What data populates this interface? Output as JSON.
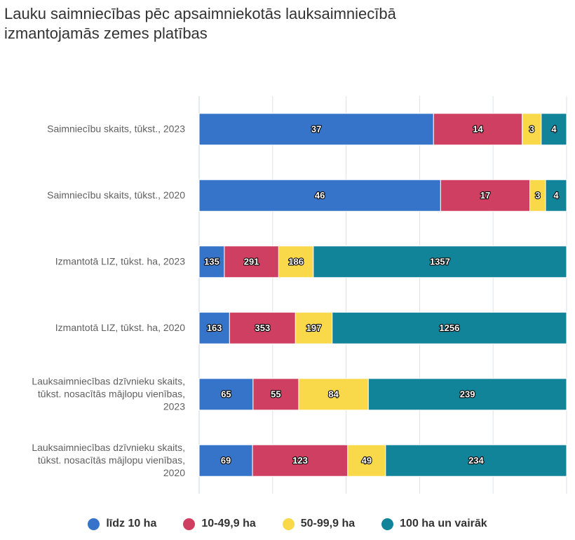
{
  "title_lines": [
    "Lauku saimniecības pēc apsaimniekotās lauksaimniecībā",
    "izmantojamās zemes platības"
  ],
  "colors": {
    "series": [
      "#3574c8",
      "#cf3f61",
      "#f9d84a",
      "#12849a"
    ],
    "grid": "#dbe3ea",
    "axis": "#ccd6e0",
    "label": "#606060"
  },
  "chart_data": {
    "type": "bar",
    "orientation": "horizontal",
    "stacking": "percent",
    "title": "Lauku saimniecības pēc apsaimniekotās lauksaimniecībā izmantojamās zemes platības",
    "categories": [
      [
        "Saimniecību skaits, tūkst., 2023"
      ],
      [
        "Saimniecību skaits, tūkst., 2020"
      ],
      [
        "Izmantotā LIZ, tūkst. ha, 2023"
      ],
      [
        "Izmantotā LIZ, tūkst. ha, 2020"
      ],
      [
        "Lauksaimniecības dzīvnieku skaits,",
        "tūkst. nosacītās mājlopu vienības,",
        "2023"
      ],
      [
        "Lauksaimniecības dzīvnieku skaits,",
        "tūkst. nosacītās mājlopu vienības,",
        "2020"
      ]
    ],
    "series": [
      {
        "name": "līdz 10 ha",
        "values": [
          37,
          46,
          135,
          163,
          65,
          69
        ]
      },
      {
        "name": "10-49,9 ha",
        "values": [
          14,
          17,
          291,
          353,
          55,
          123
        ]
      },
      {
        "name": "50-99,9 ha",
        "values": [
          3,
          3,
          186,
          197,
          84,
          49
        ]
      },
      {
        "name": "100 ha un vairāk",
        "values": [
          4,
          4,
          1357,
          1256,
          239,
          234
        ]
      }
    ],
    "xlim": [
      0,
      100
    ],
    "grid": true,
    "legend": "bottom-center",
    "data_labels": true
  }
}
